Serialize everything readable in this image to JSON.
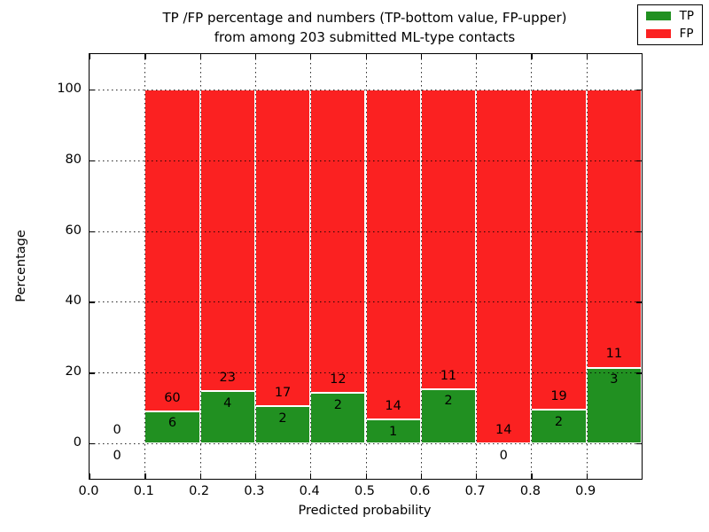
{
  "title": {
    "line1": "TP /FP percentage and numbers (TP-bottom value, FP-upper)",
    "line2": "from among 203 submitted ML-type contacts"
  },
  "axes": {
    "xlabel": "Predicted probability",
    "ylabel": "Percentage",
    "x_tick_labels": [
      "0.0",
      "0.1",
      "0.2",
      "0.3",
      "0.4",
      "0.5",
      "0.6",
      "0.7",
      "0.8",
      "0.9"
    ],
    "y_tick_labels": [
      "0",
      "20",
      "40",
      "60",
      "80",
      "100"
    ]
  },
  "legend": {
    "position": "upper right",
    "items": [
      {
        "label": "TP",
        "color": "#219021"
      },
      {
        "label": "FP",
        "color": "#fb2121"
      }
    ]
  },
  "chart_data": {
    "type": "bar",
    "stacked": true,
    "title": "TP /FP percentage and numbers (TP-bottom value, FP-upper) from among 203 submitted ML-type contacts",
    "xlabel": "Predicted probability",
    "ylabel": "Percentage",
    "total_contacts": 203,
    "bin_edges": [
      0.0,
      0.1,
      0.2,
      0.3,
      0.4,
      0.5,
      0.6,
      0.7,
      0.8,
      0.9,
      1.0
    ],
    "series": [
      {
        "name": "TP",
        "color": "#219021",
        "counts": [
          0,
          6,
          4,
          2,
          2,
          1,
          2,
          0,
          2,
          3
        ],
        "percent_of_bin": [
          null,
          9.09,
          14.81,
          10.53,
          14.29,
          6.67,
          15.38,
          0.0,
          9.52,
          21.43
        ]
      },
      {
        "name": "FP",
        "color": "#fb2121",
        "counts": [
          0,
          60,
          23,
          17,
          12,
          14,
          11,
          14,
          19,
          11
        ],
        "percent_of_bin": [
          null,
          90.91,
          85.19,
          89.47,
          85.71,
          93.33,
          84.62,
          100.0,
          90.48,
          78.57
        ]
      }
    ],
    "bar_value_labels_note": "TP count shown inside green segment, FP count shown just above green top inside red segment; empty bins show 0 above and 0 below the zero line",
    "xlim": [
      0.0,
      1.0
    ],
    "ylim": [
      -10,
      110
    ],
    "x_grid": [
      0.1,
      0.2,
      0.3,
      0.4,
      0.5,
      0.6,
      0.7,
      0.8,
      0.9
    ],
    "y_grid": [
      0,
      20,
      40,
      60,
      80,
      100
    ],
    "grid_style": "dotted",
    "legend_position": "upper right"
  }
}
